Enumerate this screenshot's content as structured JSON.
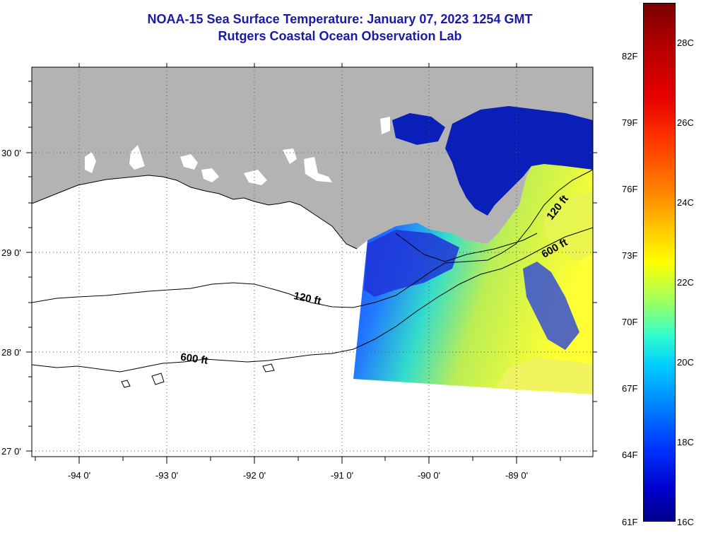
{
  "header": {
    "title": "NOAA-15 Sea Surface Temperature:  January 07, 2023 1254 GMT",
    "subtitle": "Rutgers Coastal Ocean Observation Lab"
  },
  "map": {
    "lat_labels": [
      "30 0'",
      "29 0'",
      "28 0'",
      "27 0'"
    ],
    "lon_labels": [
      "-94 0'",
      "-93 0'",
      "-92 0'",
      "-91 0'",
      "-90 0'",
      "-89 0'"
    ],
    "contour_labels": {
      "c120_west": "120 ft",
      "c600_west": "600 ft",
      "c120_east": "120 ft",
      "c600_east": "600 ft"
    },
    "colors": {
      "land": "#b3b3b3",
      "ocean": "#ffffff",
      "sst_cold": "#0000cc",
      "sst_warm": "#ffff33"
    }
  },
  "colorbar": {
    "fahrenheit_labels": [
      "82F",
      "79F",
      "76F",
      "73F",
      "70F",
      "67F",
      "64F",
      "61F"
    ],
    "celsius_labels": [
      "28C",
      "26C",
      "24C",
      "22C",
      "20C",
      "18C",
      "16C"
    ]
  }
}
